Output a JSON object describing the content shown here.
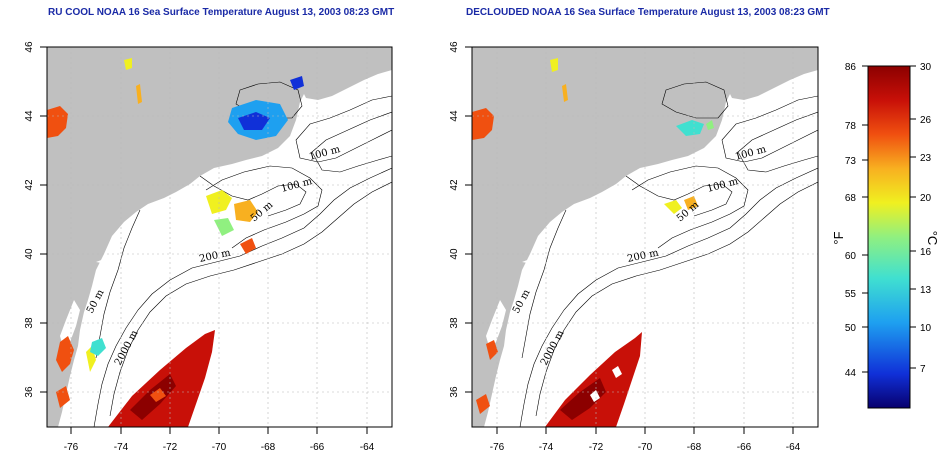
{
  "panels": [
    {
      "title": "RU COOL NOAA 16 Sea Surface Temperature August 13, 2003 08:23 GMT",
      "contour_labels": [
        "100 m",
        "100 m",
        "50 m",
        "200 m",
        "50 m",
        "2000 m"
      ]
    },
    {
      "title": "DECLOUDED NOAA 16 Sea Surface Temperature August 13, 2003 08:23 GMT",
      "contour_labels": [
        "100 m",
        "100 m",
        "50 m",
        "200 m",
        "50 m",
        "2000 m"
      ]
    }
  ],
  "axes": {
    "lat_ticks": [
      "46",
      "44",
      "42",
      "40",
      "38",
      "36"
    ],
    "lon_ticks": [
      "-76",
      "-74",
      "-72",
      "-70",
      "-68",
      "-66",
      "-64"
    ],
    "lat_range": [
      35,
      46
    ],
    "lon_range": [
      -77,
      -63
    ]
  },
  "colorbar": {
    "fahrenheit_ticks": [
      "86",
      "78",
      "73",
      "68",
      "60",
      "55",
      "50",
      "44"
    ],
    "celsius_ticks": [
      "30",
      "26",
      "23",
      "20",
      "16",
      "13",
      "10",
      "7"
    ],
    "fahrenheit_label": "°F",
    "celsius_label": "°C",
    "colors": [
      "#08006e",
      "#1030d8",
      "#1ea0f0",
      "#40e0d0",
      "#90f080",
      "#f0f020",
      "#f8b020",
      "#f05010",
      "#c81008",
      "#8c0000"
    ]
  },
  "colors": {
    "land": "#c0c0c0",
    "ocean": "#ffffff",
    "title": "#1a2aa6"
  }
}
